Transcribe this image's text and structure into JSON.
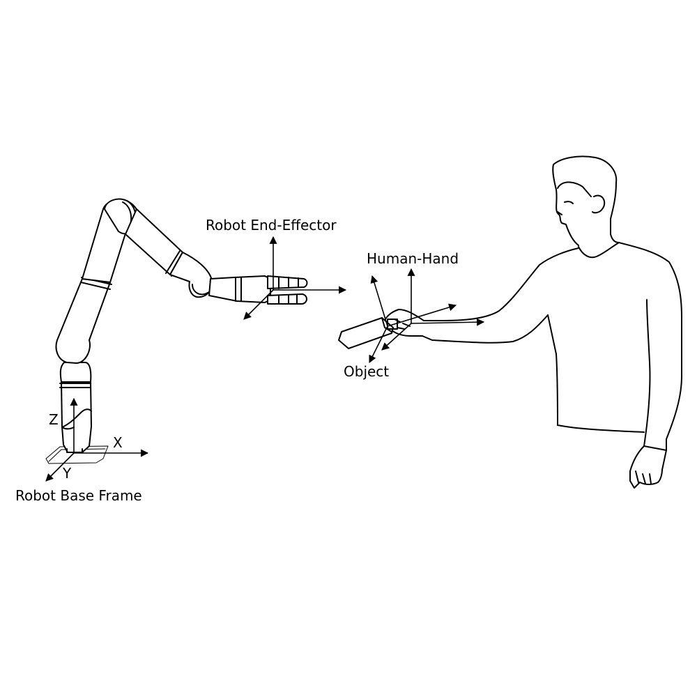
{
  "labels": {
    "end_effector": "Robot End-Effector",
    "human_hand": "Human-Hand",
    "object": "Object",
    "base_frame": "Robot Base Frame",
    "axis_x": "X",
    "axis_y": "Y",
    "axis_z": "Z"
  },
  "colors": {
    "ink": "#000000",
    "background": "#ffffff"
  }
}
